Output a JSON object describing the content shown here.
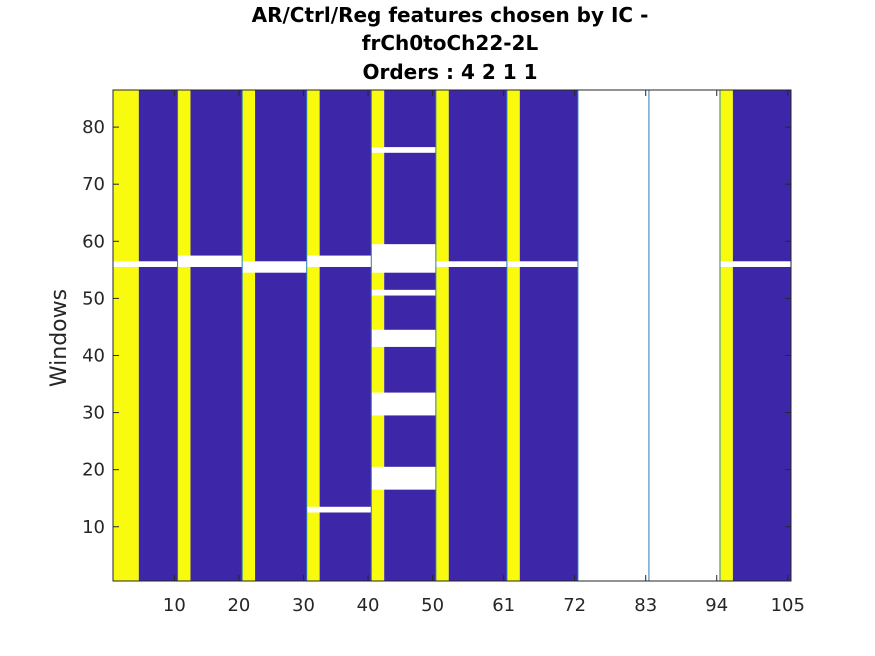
{
  "chart_data": {
    "type": "heatmap",
    "title": [
      "AR/Ctrl/Reg features chosen by IC -",
      "frCh0toCh22-2L",
      "Orders : 4 2 1 1"
    ],
    "xlabel": "",
    "ylabel": "Windows",
    "xlim": [
      0.5,
      105.5
    ],
    "ylim": [
      0.5,
      86.5
    ],
    "x_ticks": [
      10,
      20,
      30,
      40,
      50,
      61,
      72,
      83,
      94,
      105
    ],
    "x_tick_labels": [
      "10",
      "20",
      "30",
      "40",
      "50",
      "61",
      "72",
      "83",
      "94",
      "105"
    ],
    "y_ticks": [
      10,
      20,
      30,
      40,
      50,
      60,
      70,
      80
    ],
    "y_tick_labels": [
      "10",
      "20",
      "30",
      "40",
      "50",
      "60",
      "70",
      "80"
    ],
    "colors": {
      "yellow": "#f9fb0e",
      "blue": "#3e26a8",
      "white": "#ffffff",
      "separator": "#2a7ab9"
    },
    "background_value": "white",
    "regions": [
      {
        "color": "yellow",
        "x": [
          0.5,
          4.5
        ],
        "y": [
          0.5,
          86.5
        ]
      },
      {
        "color": "blue",
        "x": [
          4.5,
          10.5
        ],
        "y": [
          0.5,
          86.5
        ]
      },
      {
        "color": "yellow",
        "x": [
          10.5,
          12.5
        ],
        "y": [
          0.5,
          86.5
        ]
      },
      {
        "color": "blue",
        "x": [
          12.5,
          20.5
        ],
        "y": [
          0.5,
          86.5
        ]
      },
      {
        "color": "yellow",
        "x": [
          20.5,
          22.5
        ],
        "y": [
          0.5,
          86.5
        ]
      },
      {
        "color": "blue",
        "x": [
          22.5,
          30.5
        ],
        "y": [
          0.5,
          86.5
        ]
      },
      {
        "color": "yellow",
        "x": [
          30.5,
          32.5
        ],
        "y": [
          0.5,
          86.5
        ]
      },
      {
        "color": "blue",
        "x": [
          32.5,
          40.5
        ],
        "y": [
          0.5,
          86.5
        ]
      },
      {
        "color": "yellow",
        "x": [
          40.5,
          42.5
        ],
        "y": [
          0.5,
          86.5
        ]
      },
      {
        "color": "blue",
        "x": [
          42.5,
          50.5
        ],
        "y": [
          0.5,
          86.5
        ]
      },
      {
        "color": "yellow",
        "x": [
          50.5,
          52.5
        ],
        "y": [
          0.5,
          86.5
        ]
      },
      {
        "color": "blue",
        "x": [
          52.5,
          61.5
        ],
        "y": [
          0.5,
          86.5
        ]
      },
      {
        "color": "yellow",
        "x": [
          61.5,
          63.5
        ],
        "y": [
          0.5,
          86.5
        ]
      },
      {
        "color": "blue",
        "x": [
          63.5,
          72.5
        ],
        "y": [
          0.5,
          86.5
        ]
      },
      {
        "color": "yellow",
        "x": [
          94.5,
          96.5
        ],
        "y": [
          0.5,
          86.5
        ]
      },
      {
        "color": "blue",
        "x": [
          96.5,
          105.5
        ],
        "y": [
          0.5,
          86.5
        ]
      },
      {
        "color": "white",
        "x": [
          0.5,
          10.5
        ],
        "y": [
          55.5,
          56.5
        ]
      },
      {
        "color": "white",
        "x": [
          10.5,
          20.5
        ],
        "y": [
          55.5,
          57.5
        ]
      },
      {
        "color": "white",
        "x": [
          20.5,
          30.5
        ],
        "y": [
          54.5,
          56.5
        ]
      },
      {
        "color": "white",
        "x": [
          30.5,
          40.5
        ],
        "y": [
          55.5,
          57.5
        ]
      },
      {
        "color": "white",
        "x": [
          30.5,
          40.5
        ],
        "y": [
          12.5,
          13.5
        ]
      },
      {
        "color": "white",
        "x": [
          40.5,
          50.5
        ],
        "y": [
          75.5,
          76.5
        ]
      },
      {
        "color": "white",
        "x": [
          40.5,
          50.5
        ],
        "y": [
          54.5,
          59.5
        ]
      },
      {
        "color": "white",
        "x": [
          40.5,
          50.5
        ],
        "y": [
          50.5,
          51.5
        ]
      },
      {
        "color": "white",
        "x": [
          40.5,
          50.5
        ],
        "y": [
          41.5,
          44.5
        ]
      },
      {
        "color": "white",
        "x": [
          40.5,
          50.5
        ],
        "y": [
          29.5,
          33.5
        ]
      },
      {
        "color": "white",
        "x": [
          40.5,
          50.5
        ],
        "y": [
          16.5,
          20.5
        ]
      },
      {
        "color": "white",
        "x": [
          50.5,
          61.5
        ],
        "y": [
          55.5,
          56.5
        ]
      },
      {
        "color": "white",
        "x": [
          61.5,
          72.5
        ],
        "y": [
          55.5,
          56.5
        ]
      },
      {
        "color": "white",
        "x": [
          94.5,
          105.5
        ],
        "y": [
          55.5,
          56.5
        ]
      }
    ],
    "group_separators_x": [
      10.5,
      20.5,
      30.5,
      40.5,
      50.5,
      61.5,
      72.5,
      83.5,
      94.5
    ],
    "grid": false,
    "legend": "none"
  }
}
